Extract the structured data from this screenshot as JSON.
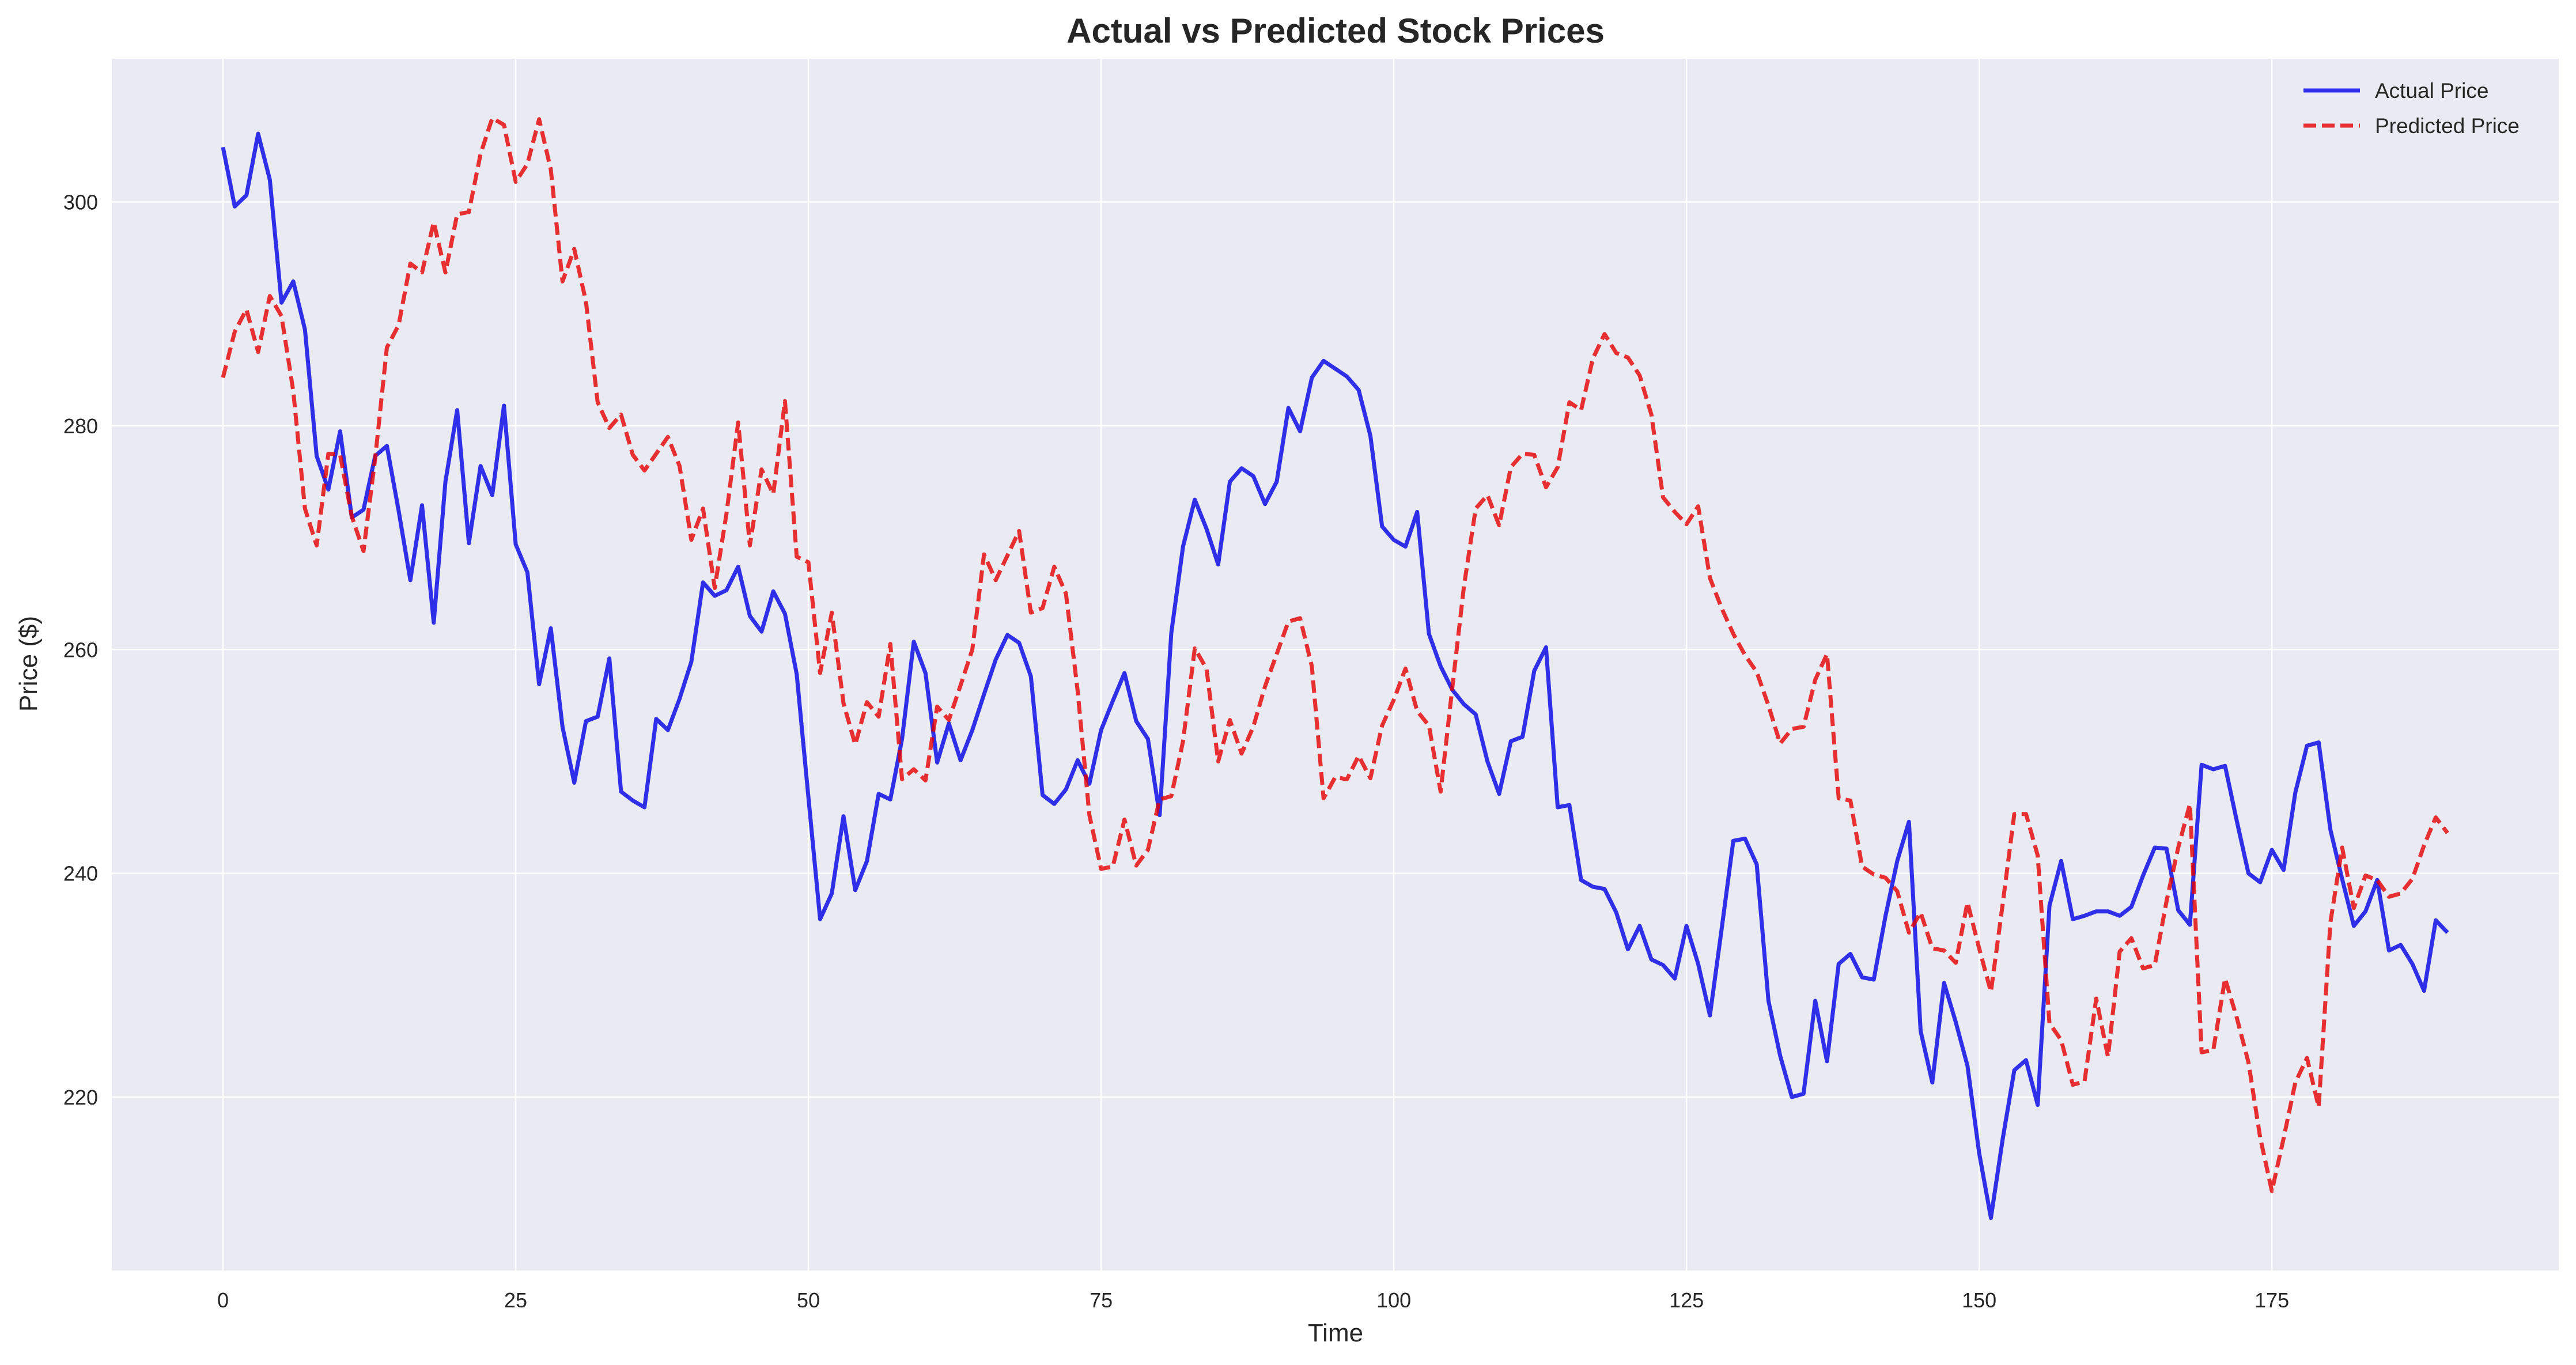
{
  "chart_data": {
    "type": "line",
    "title": "Actual vs Predicted Stock Prices",
    "xlabel": "Time",
    "ylabel": "Price ($)",
    "xlim": [
      -9.5,
      199.5
    ],
    "ylim": [
      204.5,
      312.8
    ],
    "xticks": [
      0,
      25,
      50,
      75,
      100,
      125,
      150,
      175
    ],
    "yticks": [
      220,
      240,
      260,
      280,
      300
    ],
    "xtick_labels": [
      "0",
      "25",
      "50",
      "75",
      "100",
      "125",
      "150",
      "175"
    ],
    "ytick_labels": [
      "220",
      "240",
      "260",
      "280",
      "300"
    ],
    "grid": true,
    "legend_position": "top-right",
    "background_color": "#eaeaf2",
    "series": [
      {
        "name": "Actual Price",
        "color": "#0000e6",
        "style": "solid",
        "values": [
          304.9,
          299.6,
          300.6,
          306.1,
          302.0,
          291.0,
          292.9,
          288.6,
          277.3,
          274.3,
          279.5,
          271.8,
          272.5,
          277.3,
          278.2,
          272.4,
          266.2,
          272.9,
          262.4,
          275.0,
          281.4,
          269.5,
          276.4,
          273.8,
          281.8,
          269.4,
          266.9,
          256.9,
          261.9,
          253.1,
          248.1,
          253.6,
          254.0,
          259.2,
          247.3,
          246.5,
          245.9,
          253.8,
          252.8,
          255.6,
          258.9,
          266.0,
          264.8,
          265.3,
          267.4,
          263.0,
          261.6,
          265.2,
          263.2,
          257.8,
          246.8,
          235.9,
          238.2,
          245.1,
          238.5,
          241.1,
          247.1,
          246.6,
          252.0,
          260.7,
          257.9,
          249.9,
          253.4,
          250.1,
          252.8,
          256.0,
          259.1,
          261.3,
          260.6,
          257.6,
          247.0,
          246.2,
          247.5,
          250.1,
          248.0,
          252.8,
          255.4,
          257.9,
          253.6,
          252.0,
          245.2,
          261.5,
          269.2,
          273.4,
          270.8,
          267.6,
          275.0,
          276.2,
          275.5,
          273.0,
          275.0,
          281.6,
          279.5,
          284.3,
          285.8,
          285.1,
          284.4,
          283.2,
          279.1,
          271.0,
          269.8,
          269.2,
          272.3,
          261.4,
          258.5,
          256.4,
          255.1,
          254.2,
          250.0,
          247.1,
          251.8,
          252.2,
          258.1,
          260.2,
          245.9,
          246.1,
          239.4,
          238.8,
          238.6,
          236.5,
          233.2,
          235.3,
          232.3,
          231.8,
          230.6,
          235.3,
          231.9,
          227.3,
          235.0,
          242.9,
          243.1,
          240.8,
          228.6,
          223.7,
          220.0,
          220.3,
          228.6,
          223.2,
          231.9,
          232.8,
          230.7,
          230.5,
          236.2,
          241.1,
          244.6,
          225.9,
          221.3,
          230.2,
          226.7,
          222.8,
          215.0,
          209.2,
          216.2,
          222.4,
          223.3,
          219.3,
          237.1,
          241.1,
          235.9,
          236.2,
          236.6,
          236.6,
          236.2,
          237.0,
          239.8,
          242.3,
          242.2,
          236.7,
          235.4,
          249.7,
          249.3,
          249.6,
          244.7,
          240.0,
          239.2,
          242.1,
          240.3,
          247.2,
          251.4,
          251.7,
          243.9,
          239.5,
          235.3,
          236.6,
          239.4,
          233.1,
          233.6,
          231.9,
          229.5,
          235.8,
          234.7
        ]
      },
      {
        "name": "Predicted Price",
        "color": "#e60000",
        "style": "dashed",
        "values": [
          284.3,
          288.4,
          290.4,
          286.6,
          291.6,
          289.8,
          283.1,
          272.6,
          269.3,
          277.5,
          277.4,
          271.9,
          268.8,
          277.1,
          287.0,
          289.0,
          294.5,
          293.7,
          298.2,
          293.7,
          298.9,
          299.1,
          304.3,
          307.5,
          306.9,
          301.8,
          303.4,
          307.4,
          302.9,
          292.9,
          295.8,
          291.1,
          282.1,
          279.8,
          281.0,
          277.4,
          276.0,
          277.5,
          279.0,
          276.4,
          269.8,
          272.6,
          265.5,
          272.1,
          280.3,
          269.3,
          276.1,
          273.9,
          282.2,
          268.3,
          267.8,
          257.9,
          263.3,
          255.2,
          251.5,
          255.3,
          254.0,
          260.5,
          248.4,
          249.3,
          248.3,
          254.9,
          253.7,
          256.8,
          260.0,
          268.5,
          266.2,
          268.4,
          270.6,
          263.3,
          263.7,
          267.4,
          265.0,
          256.3,
          245.2,
          240.4,
          240.6,
          244.8,
          240.7,
          242.1,
          246.6,
          246.9,
          251.8,
          260.1,
          258.3,
          250.0,
          253.7,
          250.7,
          253.1,
          256.7,
          259.6,
          262.5,
          262.8,
          258.5,
          246.7,
          248.6,
          248.4,
          250.5,
          248.5,
          253.2,
          255.5,
          258.3,
          254.5,
          253.2,
          247.3,
          256.6,
          265.7,
          272.6,
          273.8,
          271.1,
          276.3,
          277.5,
          277.4,
          274.5,
          276.3,
          282.1,
          281.4,
          286.0,
          288.2,
          286.5,
          286.1,
          284.5,
          281.0,
          273.6,
          272.3,
          271.2,
          272.8,
          266.4,
          263.7,
          261.4,
          259.5,
          258.0,
          255.0,
          251.6,
          252.9,
          253.1,
          257.3,
          259.6,
          246.7,
          246.5,
          240.6,
          239.9,
          239.6,
          238.4,
          234.7,
          236.5,
          233.3,
          233.1,
          232.0,
          237.4,
          233.3,
          229.4,
          237.2,
          245.3,
          245.3,
          241.6,
          226.6,
          225.1,
          221.1,
          221.4,
          228.8,
          223.6,
          233.0,
          234.2,
          231.5,
          231.8,
          237.5,
          242.3,
          246.2,
          224.0,
          224.2,
          230.6,
          227.1,
          223.1,
          216.4,
          211.6,
          216.3,
          221.3,
          223.5,
          219.1,
          235.6,
          242.3,
          236.9,
          239.8,
          239.4,
          237.9,
          238.2,
          239.5,
          242.5,
          245.0,
          243.6
        ]
      }
    ]
  }
}
